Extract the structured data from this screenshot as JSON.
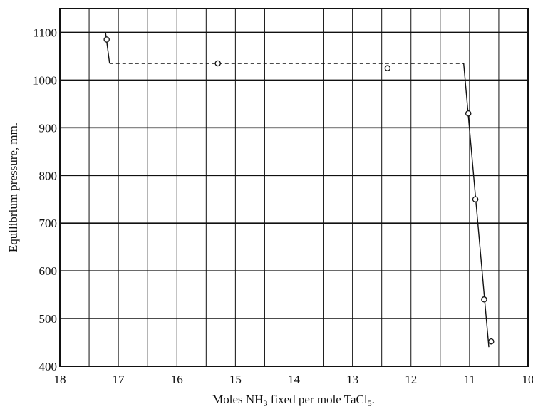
{
  "chart_data": {
    "type": "scatter",
    "title": "",
    "xlabel": "Moles NH",
    "xlabel_sub1": "3",
    "xlabel_mid": " fixed per mole TaCl",
    "xlabel_sub2": "5",
    "xlabel_end": ".",
    "ylabel": "Equilibrium pressure, mm.",
    "xlim": [
      18,
      10
    ],
    "ylim": [
      400,
      1150
    ],
    "xticks": [
      "18",
      "17",
      "16",
      "15",
      "14",
      "13",
      "12",
      "11",
      "10"
    ],
    "xtick_values": [
      18,
      17,
      16,
      15,
      14,
      13,
      12,
      11,
      10
    ],
    "yticks": [
      "400",
      "500",
      "600",
      "700",
      "800",
      "900",
      "1000",
      "1100"
    ],
    "ytick_values": [
      400,
      500,
      600,
      700,
      800,
      900,
      1000,
      1100
    ],
    "x_minor_grid": [
      17.5,
      16.5,
      15.5,
      14.5,
      13.5,
      12.5,
      11.5,
      10.5
    ],
    "grid": true,
    "series": [
      {
        "points": [
          {
            "x": 17.2,
            "y": 1085
          },
          {
            "x": 15.3,
            "y": 1035
          },
          {
            "x": 12.4,
            "y": 1025
          },
          {
            "x": 11.02,
            "y": 930
          },
          {
            "x": 10.9,
            "y": 750
          },
          {
            "x": 10.75,
            "y": 540
          },
          {
            "x": 10.63,
            "y": 452
          }
        ]
      }
    ],
    "fit_lines": [
      {
        "style": "solid",
        "points": [
          {
            "x": 17.22,
            "y": 1100
          },
          {
            "x": 17.15,
            "y": 1035
          }
        ]
      },
      {
        "style": "dashed",
        "points": [
          {
            "x": 17.15,
            "y": 1035
          },
          {
            "x": 11.1,
            "y": 1035
          }
        ]
      },
      {
        "style": "solid",
        "points": [
          {
            "x": 11.1,
            "y": 1035
          },
          {
            "x": 10.67,
            "y": 440
          }
        ]
      }
    ]
  }
}
